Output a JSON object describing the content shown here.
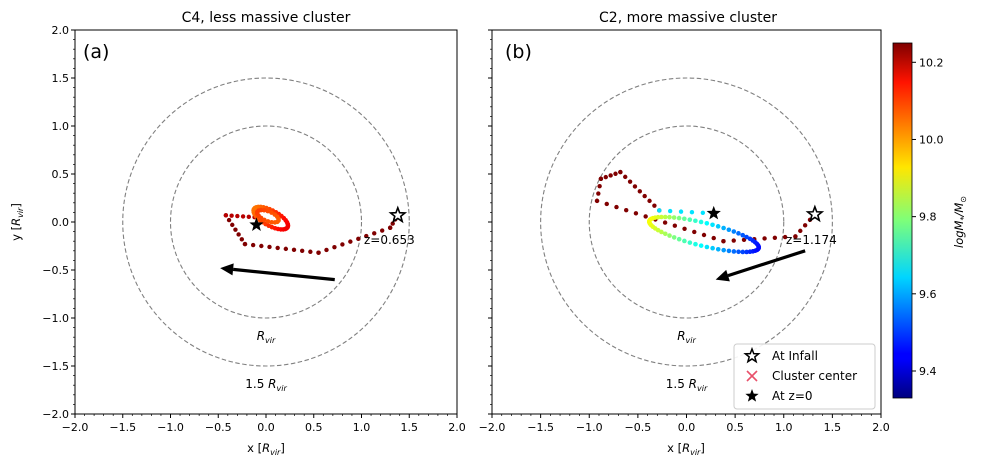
{
  "chart_data": [
    {
      "type": "scatter",
      "panel_label": "(a)",
      "title": "C4, less massive cluster",
      "xlabel": "x [R_vir]",
      "ylabel": "y [R_vir]",
      "xlim": [
        -2.0,
        2.0
      ],
      "ylim": [
        -2.0,
        2.0
      ],
      "xticks": [
        "−2.0",
        "−1.5",
        "−1.0",
        "−0.5",
        "0.0",
        "0.5",
        "1.0",
        "1.5",
        "2.0"
      ],
      "yticks": [
        "−2.0",
        "−1.5",
        "−1.0",
        "−0.5",
        "0.0",
        "0.5",
        "1.0",
        "1.5",
        "2.0"
      ],
      "circles": [
        {
          "radius": 1.0,
          "label": "R_vir"
        },
        {
          "radius": 1.5,
          "label": "1.5 R_vir"
        }
      ],
      "infall_marker": {
        "x": 1.38,
        "y": 0.07
      },
      "z0_marker": {
        "x": -0.1,
        "y": -0.03
      },
      "infall_label": "z=0.653",
      "arrow": {
        "from": [
          0.72,
          -0.6
        ],
        "to": [
          -0.48,
          -0.48
        ]
      },
      "trajectory_segments": [
        {
          "from": [
            1.38,
            0.07
          ],
          "to": [
            1.3,
            -0.06
          ],
          "points": 4,
          "logM": 10.25
        },
        {
          "from": [
            1.3,
            -0.06
          ],
          "to": [
            0.55,
            -0.32
          ],
          "points": 10,
          "logM": 10.25
        },
        {
          "from": [
            0.55,
            -0.32
          ],
          "to": [
            -0.22,
            -0.23
          ],
          "points": 10,
          "logM": 10.25
        },
        {
          "from": [
            -0.22,
            -0.23
          ],
          "to": [
            -0.42,
            0.07
          ],
          "points": 7,
          "logM": 10.25
        },
        {
          "from": [
            -0.42,
            0.07
          ],
          "to": [
            -0.12,
            0.05
          ],
          "points": 6,
          "logM": 10.2
        }
      ],
      "loops": [
        {
          "center": [
            0.05,
            0.04
          ],
          "rx": 0.2,
          "ry": 0.08,
          "rotation_deg": -28,
          "points": 34,
          "logM_start": 10.15,
          "logM_end": 10.03
        },
        {
          "center": [
            0.02,
            0.06
          ],
          "rx": 0.12,
          "ry": 0.05,
          "rotation_deg": -22,
          "points": 18,
          "logM_start": 10.05,
          "logM_end": 10.08
        }
      ]
    },
    {
      "type": "scatter",
      "panel_label": "(b)",
      "title": "C2, more massive cluster",
      "xlabel": "x [R_vir]",
      "ylabel": "",
      "xlim": [
        -2.0,
        2.0
      ],
      "ylim": [
        -2.0,
        2.0
      ],
      "xticks": [
        "−2.0",
        "−1.5",
        "−1.0",
        "−0.5",
        "0.0",
        "0.5",
        "1.0",
        "1.5",
        "2.0"
      ],
      "circles": [
        {
          "radius": 1.0,
          "label": "R_vir"
        },
        {
          "radius": 1.5,
          "label": "1.5 R_vir"
        }
      ],
      "infall_marker": {
        "x": 1.32,
        "y": 0.08
      },
      "z0_marker": {
        "x": 0.28,
        "y": 0.09
      },
      "infall_label": "z=1.174",
      "arrow": {
        "from": [
          1.22,
          -0.3
        ],
        "to": [
          0.3,
          -0.6
        ]
      },
      "trajectory_segments": [
        {
          "from": [
            1.32,
            0.08
          ],
          "to": [
            1.12,
            -0.15
          ],
          "points": 5,
          "logM": 10.25
        },
        {
          "from": [
            1.12,
            -0.15
          ],
          "to": [
            0.38,
            -0.2
          ],
          "points": 8,
          "logM": 10.25
        },
        {
          "from": [
            0.38,
            -0.2
          ],
          "to": [
            -0.92,
            0.22
          ],
          "points": 14,
          "logM": 10.25
        },
        {
          "from": [
            -0.92,
            0.22
          ],
          "to": [
            -0.88,
            0.45
          ],
          "points": 4,
          "logM": 10.25
        },
        {
          "from": [
            -0.88,
            0.45
          ],
          "to": [
            -0.68,
            0.52
          ],
          "points": 5,
          "logM": 10.25
        },
        {
          "from": [
            -0.68,
            0.52
          ],
          "to": [
            -0.28,
            0.12
          ],
          "points": 9,
          "logM": 10.25
        },
        {
          "from": [
            -0.28,
            0.12
          ],
          "to": [
            0.28,
            0.09
          ],
          "points": 6,
          "logM": 9.65
        }
      ],
      "loops": [
        {
          "center": [
            0.18,
            -0.13
          ],
          "rx": 0.58,
          "ry": 0.12,
          "rotation_deg": -14,
          "points": 60,
          "logM_start": 9.45,
          "logM_end": 9.9
        }
      ]
    }
  ],
  "colorbar": {
    "label": "logM_*/M_⊙",
    "min": 9.33,
    "max": 10.25,
    "ticks": [
      {
        "value": 9.4,
        "label": "9.4"
      },
      {
        "value": 9.6,
        "label": "9.6"
      },
      {
        "value": 9.8,
        "label": "9.8"
      },
      {
        "value": 10.0,
        "label": "10.0"
      },
      {
        "value": 10.2,
        "label": "10.2"
      }
    ]
  },
  "legend": {
    "items": [
      {
        "marker": "open-star",
        "label": "At Infall"
      },
      {
        "marker": "x",
        "label": "Cluster center"
      },
      {
        "marker": "filled-star",
        "label": "At z=0"
      }
    ],
    "position": "lower-right"
  },
  "colors": {
    "circle": "#808080",
    "cluster_center": "#e8506a",
    "arrow": "#000000"
  }
}
